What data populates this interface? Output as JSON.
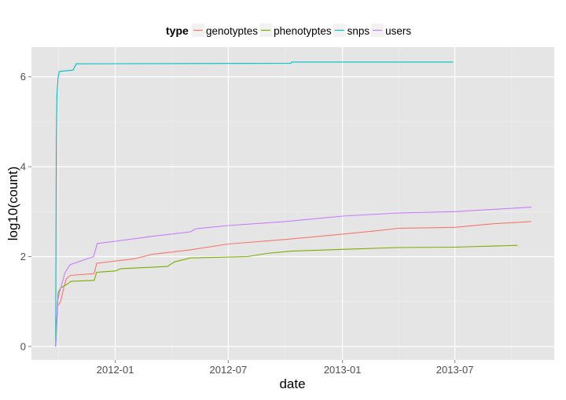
{
  "chart_data": {
    "type": "line",
    "title": "",
    "xlabel": "date",
    "ylabel": "log10(count)",
    "xlim": [
      "2011-08-19",
      "2013-12-08"
    ],
    "ylim": [
      -0.3,
      6.66
    ],
    "x_ticks": [
      "2012-01",
      "2012-07",
      "2013-01",
      "2013-07"
    ],
    "x_tick_dates": [
      "2012-01-01",
      "2012-07-01",
      "2013-01-01",
      "2013-07-01"
    ],
    "y_ticks": [
      0,
      2,
      4,
      6
    ],
    "grid": true,
    "legend": {
      "title": "type",
      "placement": "top"
    },
    "series": [
      {
        "name": "genotyptes",
        "color": "#F8766D",
        "points": [
          [
            "2011-09-27",
            0
          ],
          [
            "2011-09-30",
            0.9
          ],
          [
            "2011-10-05",
            1.0
          ],
          [
            "2011-10-10",
            1.3
          ],
          [
            "2011-10-14",
            1.5
          ],
          [
            "2011-10-20",
            1.58
          ],
          [
            "2011-11-28",
            1.62
          ],
          [
            "2011-12-02",
            1.85
          ],
          [
            "2012-01-01",
            1.9
          ],
          [
            "2012-02-01",
            1.95
          ],
          [
            "2012-03-01",
            2.05
          ],
          [
            "2012-05-01",
            2.15
          ],
          [
            "2012-07-01",
            2.28
          ],
          [
            "2012-10-01",
            2.38
          ],
          [
            "2013-01-01",
            2.5
          ],
          [
            "2013-03-01",
            2.58
          ],
          [
            "2013-04-01",
            2.63
          ],
          [
            "2013-07-01",
            2.65
          ],
          [
            "2013-09-01",
            2.73
          ],
          [
            "2013-11-01",
            2.78
          ]
        ]
      },
      {
        "name": "phenotyptes",
        "color": "#7CAE00",
        "points": [
          [
            "2011-09-27",
            0
          ],
          [
            "2011-10-01",
            1.2
          ],
          [
            "2011-10-05",
            1.3
          ],
          [
            "2011-10-15",
            1.38
          ],
          [
            "2011-10-22",
            1.45
          ],
          [
            "2011-11-28",
            1.47
          ],
          [
            "2011-12-02",
            1.65
          ],
          [
            "2012-01-01",
            1.68
          ],
          [
            "2012-01-10",
            1.73
          ],
          [
            "2012-03-25",
            1.78
          ],
          [
            "2012-04-05",
            1.88
          ],
          [
            "2012-05-01",
            1.97
          ],
          [
            "2012-08-01",
            2.0
          ],
          [
            "2012-09-01",
            2.07
          ],
          [
            "2012-10-10",
            2.12
          ],
          [
            "2013-01-01",
            2.16
          ],
          [
            "2013-04-01",
            2.2
          ],
          [
            "2013-07-01",
            2.21
          ],
          [
            "2013-10-10",
            2.25
          ]
        ]
      },
      {
        "name": "snps",
        "color": "#00BFC4",
        "points": [
          [
            "2011-09-27",
            0
          ],
          [
            "2011-09-28",
            4.6
          ],
          [
            "2011-09-29",
            5.6
          ],
          [
            "2011-10-01",
            6.0
          ],
          [
            "2011-10-03",
            6.12
          ],
          [
            "2011-10-25",
            6.15
          ],
          [
            "2011-10-30",
            6.29
          ],
          [
            "2012-10-10",
            6.3
          ],
          [
            "2012-10-11",
            6.33
          ],
          [
            "2013-06-28",
            6.33
          ]
        ]
      },
      {
        "name": "users",
        "color": "#C77CFF",
        "points": [
          [
            "2011-09-27",
            0
          ],
          [
            "2011-09-30",
            1.0
          ],
          [
            "2011-10-03",
            1.19
          ],
          [
            "2011-10-12",
            1.64
          ],
          [
            "2011-10-20",
            1.82
          ],
          [
            "2011-11-27",
            2.0
          ],
          [
            "2011-12-03",
            2.29
          ],
          [
            "2012-01-01",
            2.34
          ],
          [
            "2012-03-01",
            2.45
          ],
          [
            "2012-05-01",
            2.55
          ],
          [
            "2012-05-10",
            2.62
          ],
          [
            "2012-07-01",
            2.69
          ],
          [
            "2012-10-01",
            2.78
          ],
          [
            "2013-01-01",
            2.9
          ],
          [
            "2013-04-01",
            2.97
          ],
          [
            "2013-07-01",
            3.0
          ],
          [
            "2013-11-01",
            3.1
          ]
        ]
      }
    ]
  }
}
